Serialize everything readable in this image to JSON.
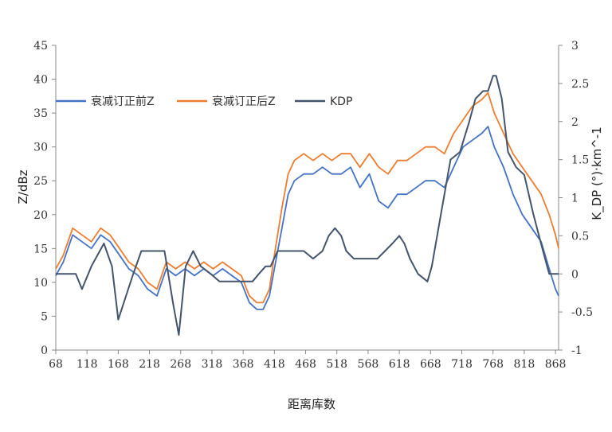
{
  "chart_data": {
    "type": "line",
    "xlabel": "距离库数",
    "ylabel_left": "Z/dBz",
    "ylabel_right": "K_DP (°)·km^-1",
    "xlim": [
      68,
      873
    ],
    "x_ticks": [
      68,
      118,
      168,
      218,
      268,
      318,
      368,
      418,
      468,
      518,
      568,
      618,
      668,
      718,
      768,
      818,
      868
    ],
    "ylim_left": [
      0,
      45
    ],
    "y_ticks_left": [
      0,
      5,
      10,
      15,
      20,
      25,
      30,
      35,
      40,
      45
    ],
    "ylim_right": [
      -1,
      3
    ],
    "y_ticks_right": [
      "-1",
      "-0.5",
      "0",
      "0.5",
      "1",
      "1.5",
      "2",
      "2.5",
      "3"
    ],
    "y_ticks_right_values": [
      -1,
      -0.5,
      0,
      0.5,
      1,
      1.5,
      2,
      2.5,
      3
    ],
    "grid": false,
    "legend_position": "top-left",
    "series": [
      {
        "name": "衰减订正前Z",
        "axis": "left",
        "color": "#4472C4",
        "x": [
          68,
          80,
          95,
          110,
          125,
          140,
          155,
          170,
          185,
          200,
          215,
          230,
          245,
          260,
          275,
          290,
          305,
          320,
          335,
          350,
          365,
          378,
          390,
          400,
          410,
          418,
          430,
          440,
          450,
          465,
          480,
          495,
          510,
          525,
          540,
          555,
          570,
          585,
          600,
          615,
          630,
          645,
          660,
          675,
          690,
          705,
          720,
          735,
          750,
          760,
          770,
          785,
          800,
          815,
          830,
          845,
          858,
          868,
          873
        ],
        "values": [
          11,
          13,
          17,
          16,
          15,
          17,
          16,
          14,
          12,
          11,
          9,
          8,
          12,
          11,
          12,
          11,
          12,
          11,
          12,
          11,
          10,
          7,
          6,
          6,
          8,
          12,
          18,
          23,
          25,
          26,
          26,
          27,
          26,
          26,
          27,
          24,
          26,
          22,
          21,
          23,
          23,
          24,
          25,
          25,
          24,
          27,
          30,
          31,
          32,
          33,
          30,
          27,
          23,
          20,
          18,
          16,
          12,
          9,
          8
        ]
      },
      {
        "name": "衰减订正后Z",
        "axis": "left",
        "color": "#ED7D31",
        "x": [
          68,
          80,
          95,
          110,
          125,
          140,
          155,
          170,
          185,
          200,
          215,
          230,
          245,
          260,
          275,
          290,
          305,
          320,
          335,
          350,
          365,
          378,
          390,
          400,
          410,
          418,
          430,
          440,
          450,
          465,
          480,
          495,
          510,
          525,
          540,
          555,
          570,
          585,
          600,
          615,
          630,
          645,
          660,
          675,
          690,
          705,
          720,
          735,
          750,
          760,
          770,
          785,
          800,
          815,
          830,
          845,
          858,
          868,
          873
        ],
        "values": [
          12,
          14,
          18,
          17,
          16,
          18,
          17,
          15,
          13,
          12,
          10,
          9,
          13,
          12,
          13,
          12,
          13,
          12,
          13,
          12,
          11,
          8,
          7,
          7,
          9,
          14,
          21,
          26,
          28,
          29,
          28,
          29,
          28,
          29,
          29,
          27,
          29,
          27,
          26,
          28,
          28,
          29,
          30,
          30,
          29,
          32,
          34,
          36,
          37,
          38,
          35,
          32,
          29,
          27,
          25,
          23,
          20,
          17,
          15
        ]
      },
      {
        "name": "KDP",
        "axis": "right",
        "color": "#44546A",
        "x": [
          68,
          100,
          110,
          125,
          145,
          158,
          168,
          180,
          192,
          205,
          225,
          242,
          256,
          265,
          276,
          288,
          300,
          316,
          330,
          345,
          360,
          372,
          383,
          393,
          404,
          412,
          423,
          436,
          450,
          465,
          480,
          495,
          505,
          515,
          525,
          533,
          545,
          556,
          570,
          583,
          595,
          607,
          618,
          626,
          635,
          648,
          663,
          670,
          685,
          700,
          715,
          730,
          740,
          752,
          760,
          768,
          773,
          782,
          792,
          805,
          818,
          832,
          848,
          858,
          873
        ],
        "values": [
          0,
          0,
          -0.2,
          0.1,
          0.4,
          0.1,
          -0.6,
          -0.3,
          0,
          0.3,
          0.3,
          0.3,
          -0.4,
          -0.8,
          0.1,
          0.3,
          0.1,
          0,
          -0.1,
          -0.1,
          -0.1,
          -0.1,
          -0.1,
          0,
          0.1,
          0.1,
          0.3,
          0.3,
          0.3,
          0.3,
          0.2,
          0.3,
          0.5,
          0.6,
          0.5,
          0.3,
          0.2,
          0.2,
          0.2,
          0.2,
          0.3,
          0.4,
          0.5,
          0.4,
          0.2,
          0,
          -0.1,
          0.1,
          0.8,
          1.5,
          1.6,
          2.0,
          2.3,
          2.4,
          2.4,
          2.6,
          2.6,
          2.3,
          1.6,
          1.4,
          1.3,
          0.8,
          0.3,
          0,
          0
        ]
      }
    ]
  }
}
